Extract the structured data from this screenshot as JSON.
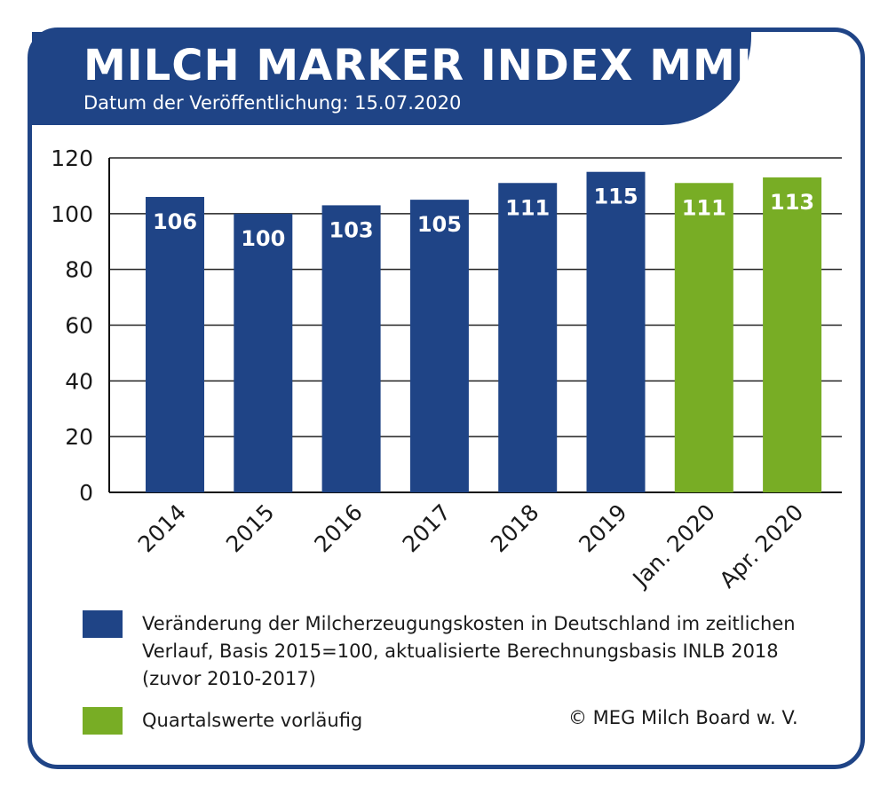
{
  "header": {
    "title": "MILCH MARKER INDEX MMI",
    "subtitle": "Datum der Veröffentlichung: 15.07.2020"
  },
  "chart_data": {
    "type": "bar",
    "categories": [
      "2014",
      "2015",
      "2016",
      "2017",
      "2018",
      "2019",
      "Jan. 2020",
      "Apr. 2020"
    ],
    "values": [
      106,
      100,
      103,
      105,
      111,
      115,
      111,
      113
    ],
    "data_labels": [
      "106",
      "100",
      "103",
      "105",
      "111",
      "115",
      "111",
      "113"
    ],
    "bar_colors": [
      "#1f4486",
      "#1f4486",
      "#1f4486",
      "#1f4486",
      "#1f4486",
      "#1f4486",
      "#78ad25",
      "#78ad25"
    ],
    "ylim": [
      0,
      120
    ],
    "yticks": [
      0,
      20,
      40,
      60,
      80,
      100,
      120
    ],
    "grid": true,
    "legend": [
      {
        "color": "#1f4486",
        "label": "Veränderung der Milcherzeugungskosten in Deutschland im zeitlichen Verlauf, Basis 2015=100, aktualisierte Berechnungsbasis INLB 2018 (zuvor 2010-2017)"
      },
      {
        "color": "#78ad25",
        "label": "Quartalswerte vorläufig"
      }
    ]
  },
  "footer": {
    "copyright": "© MEG Milch Board w. V."
  },
  "colors": {
    "brand_blue": "#1f4486",
    "green": "#78ad25",
    "grid": "#222222"
  }
}
